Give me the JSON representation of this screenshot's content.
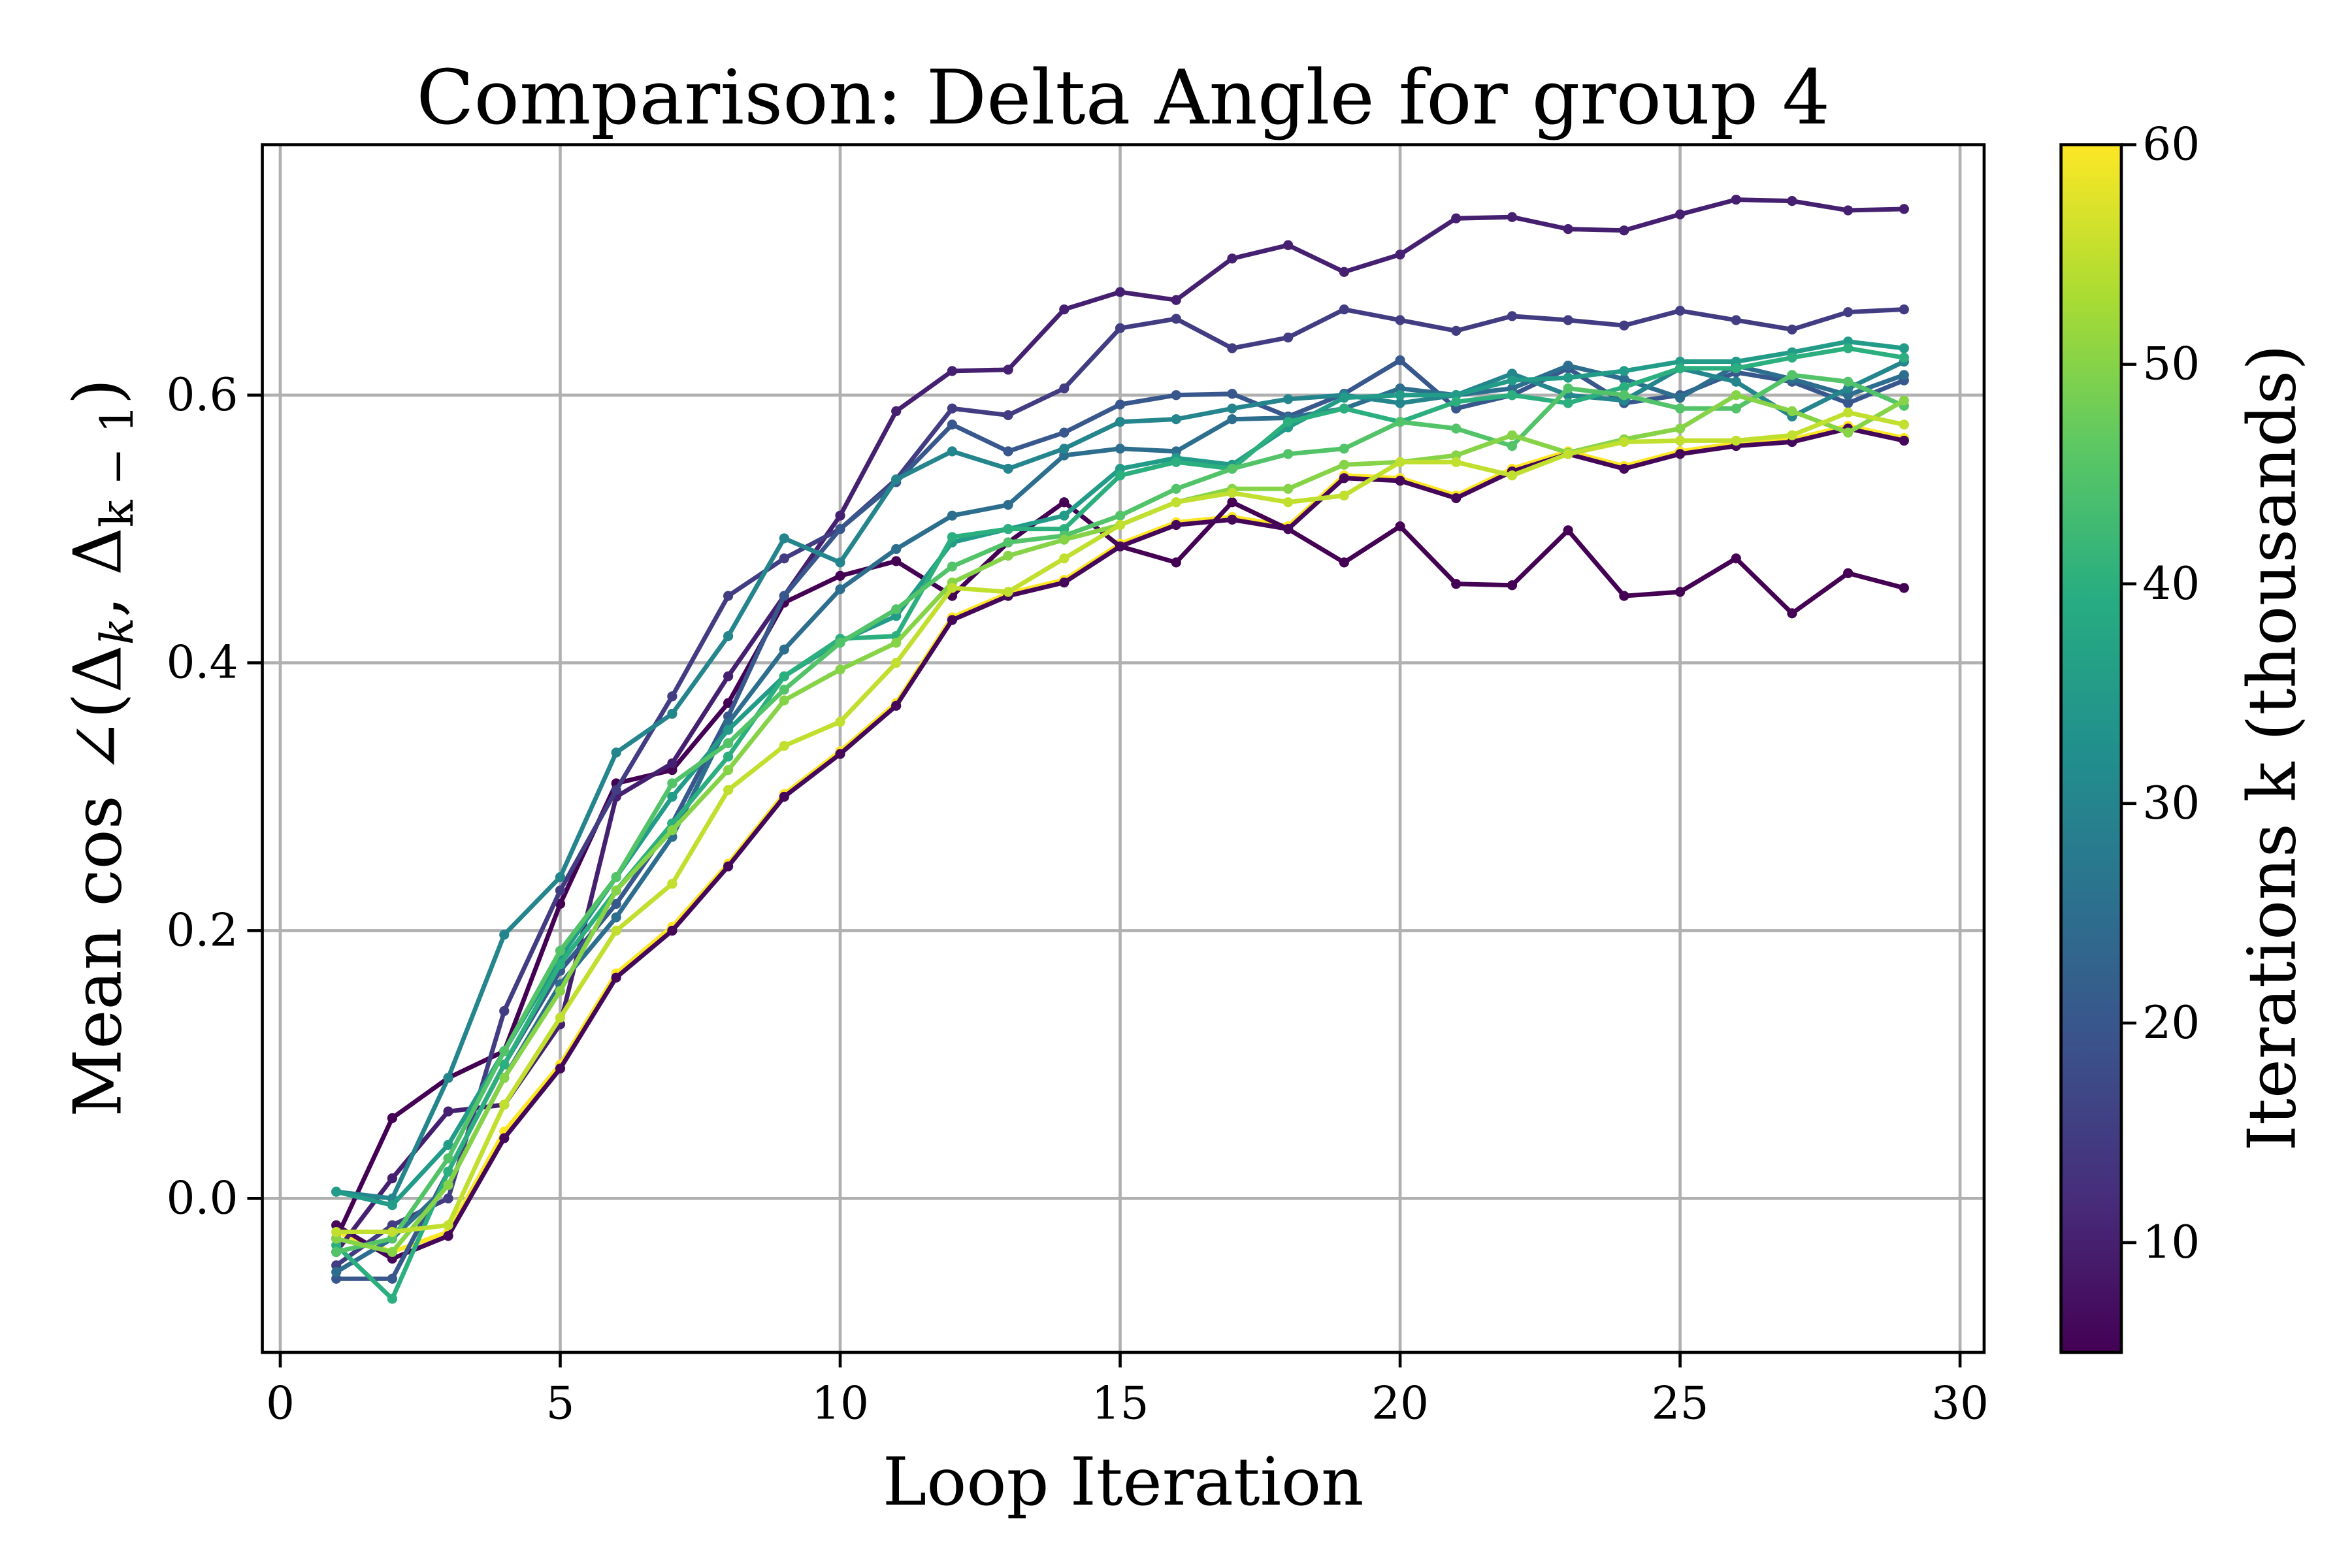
{
  "chart_data": {
    "type": "line",
    "title": "Comparison: Delta Angle for group 4",
    "xlabel": "Loop Iteration",
    "ylabel_parts": [
      "Mean cos ∠(Δ",
      "k",
      ", Δ",
      "k − 1",
      ")"
    ],
    "xlim": [
      -0.32,
      30.43
    ],
    "ylim": [
      -0.115,
      0.787
    ],
    "xticks": [
      0,
      5,
      10,
      15,
      20,
      25,
      30
    ],
    "yticks": [
      0.0,
      0.2,
      0.4,
      0.6
    ],
    "ytick_labels": [
      "0.0",
      "0.2",
      "0.4",
      "0.6"
    ],
    "grid": true,
    "colormap": "viridis",
    "colorbar": {
      "label": "Iterations k (thousands)",
      "range": [
        5,
        60
      ],
      "ticks": [
        10,
        20,
        30,
        40,
        50,
        60
      ]
    },
    "x": [
      1,
      2,
      3,
      4,
      5,
      6,
      7,
      8,
      9,
      10,
      11,
      12,
      13,
      14,
      15,
      16,
      17,
      18,
      19,
      20,
      21,
      22,
      23,
      24,
      25,
      26,
      27,
      28,
      29
    ],
    "series": [
      {
        "k": 60,
        "values": [
          -0.025,
          -0.04,
          -0.025,
          0.05,
          0.1,
          0.168,
          0.203,
          0.25,
          0.302,
          0.334,
          0.37,
          0.434,
          0.452,
          0.462,
          0.489,
          0.505,
          0.509,
          0.502,
          0.54,
          0.538,
          0.525,
          0.545,
          0.558,
          0.547,
          0.558,
          0.564,
          0.567,
          0.577,
          0.568
        ]
      },
      {
        "k": 5,
        "values": [
          -0.03,
          0.06,
          0.09,
          0.11,
          0.22,
          0.31,
          0.32,
          0.37,
          0.445,
          0.465,
          0.476,
          0.45,
          0.49,
          0.52,
          0.487,
          0.475,
          0.52,
          0.5,
          0.475,
          0.502,
          0.459,
          0.458,
          0.499,
          0.45,
          0.453,
          0.478,
          0.437,
          0.467,
          0.456
        ]
      },
      {
        "k": 6,
        "values": [
          -0.02,
          -0.045,
          -0.028,
          0.045,
          0.097,
          0.165,
          0.2,
          0.248,
          0.3,
          0.332,
          0.368,
          0.432,
          0.45,
          0.46,
          0.487,
          0.503,
          0.507,
          0.5,
          0.538,
          0.536,
          0.523,
          0.543,
          0.556,
          0.545,
          0.556,
          0.562,
          0.565,
          0.575,
          0.566
        ]
      },
      {
        "k": 10,
        "values": [
          -0.04,
          0.015,
          0.065,
          0.07,
          0.13,
          0.3,
          0.325,
          0.39,
          0.45,
          0.51,
          0.588,
          0.618,
          0.619,
          0.664,
          0.677,
          0.671,
          0.702,
          0.712,
          0.692,
          0.705,
          0.732,
          0.733,
          0.724,
          0.723,
          0.735,
          0.746,
          0.745,
          0.738,
          0.739
        ]
      },
      {
        "k": 15,
        "values": [
          -0.05,
          -0.02,
          0.0,
          0.14,
          0.23,
          0.305,
          0.375,
          0.45,
          0.478,
          0.5,
          0.537,
          0.59,
          0.585,
          0.605,
          0.65,
          0.657,
          0.635,
          0.643,
          0.664,
          0.656,
          0.648,
          0.659,
          0.656,
          0.652,
          0.663,
          0.656,
          0.649,
          0.662,
          0.664
        ]
      },
      {
        "k": 20,
        "values": [
          -0.06,
          -0.06,
          0.02,
          0.1,
          0.17,
          0.22,
          0.28,
          0.36,
          0.45,
          0.5,
          0.535,
          0.578,
          0.558,
          0.572,
          0.593,
          0.6,
          0.601,
          0.584,
          0.601,
          0.626,
          0.59,
          0.6,
          0.62,
          0.594,
          0.6,
          0.617,
          0.61,
          0.594,
          0.611
        ]
      },
      {
        "k": 25,
        "values": [
          -0.055,
          -0.03,
          0.01,
          0.09,
          0.16,
          0.21,
          0.27,
          0.355,
          0.41,
          0.455,
          0.485,
          0.51,
          0.518,
          0.555,
          0.56,
          0.558,
          0.582,
          0.583,
          0.59,
          0.605,
          0.6,
          0.605,
          0.622,
          0.612,
          0.598,
          0.622,
          0.612,
          0.6,
          0.615
        ]
      },
      {
        "k": 30,
        "values": [
          0.005,
          0.0,
          0.09,
          0.197,
          0.24,
          0.333,
          0.362,
          0.42,
          0.493,
          0.475,
          0.537,
          0.558,
          0.545,
          0.56,
          0.58,
          0.582,
          0.59,
          0.597,
          0.6,
          0.594,
          0.6,
          0.616,
          0.6,
          0.596,
          0.62,
          0.61,
          0.584,
          0.605,
          0.625
        ]
      },
      {
        "k": 35,
        "values": [
          0.005,
          -0.005,
          0.04,
          0.11,
          0.18,
          0.24,
          0.3,
          0.35,
          0.39,
          0.416,
          0.435,
          0.49,
          0.5,
          0.51,
          0.545,
          0.553,
          0.548,
          0.576,
          0.598,
          0.6,
          0.6,
          0.611,
          0.613,
          0.618,
          0.625,
          0.625,
          0.632,
          0.64,
          0.635
        ]
      },
      {
        "k": 40,
        "values": [
          -0.035,
          -0.075,
          0.02,
          0.1,
          0.175,
          0.23,
          0.28,
          0.33,
          0.39,
          0.418,
          0.42,
          0.494,
          0.5,
          0.5,
          0.54,
          0.55,
          0.545,
          0.58,
          0.59,
          0.58,
          0.595,
          0.6,
          0.594,
          0.606,
          0.62,
          0.62,
          0.628,
          0.635,
          0.628
        ]
      },
      {
        "k": 45,
        "values": [
          -0.04,
          -0.03,
          0.03,
          0.11,
          0.185,
          0.24,
          0.31,
          0.34,
          0.38,
          0.415,
          0.44,
          0.472,
          0.49,
          0.495,
          0.51,
          0.53,
          0.545,
          0.556,
          0.56,
          0.58,
          0.575,
          0.562,
          0.605,
          0.6,
          0.59,
          0.59,
          0.615,
          0.61,
          0.592
        ]
      },
      {
        "k": 50,
        "values": [
          -0.03,
          -0.04,
          0.01,
          0.09,
          0.155,
          0.23,
          0.275,
          0.32,
          0.372,
          0.395,
          0.415,
          0.46,
          0.48,
          0.492,
          0.503,
          0.52,
          0.53,
          0.53,
          0.548,
          0.55,
          0.555,
          0.57,
          0.557,
          0.567,
          0.575,
          0.6,
          0.588,
          0.572,
          0.596
        ]
      },
      {
        "k": 55,
        "values": [
          -0.025,
          -0.025,
          -0.02,
          0.07,
          0.135,
          0.2,
          0.235,
          0.305,
          0.338,
          0.356,
          0.4,
          0.456,
          0.453,
          0.478,
          0.503,
          0.52,
          0.527,
          0.52,
          0.525,
          0.55,
          0.55,
          0.54,
          0.556,
          0.565,
          0.566,
          0.566,
          0.57,
          0.587,
          0.578
        ]
      }
    ]
  }
}
